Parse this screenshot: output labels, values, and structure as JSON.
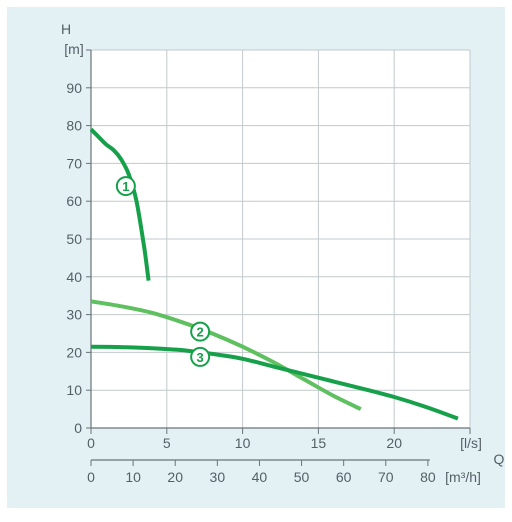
{
  "chart_data": {
    "type": "line",
    "title": "",
    "y_axis": {
      "label": "H",
      "unit": "[m]",
      "range": [
        0,
        100
      ],
      "ticks": [
        0,
        10,
        20,
        30,
        40,
        50,
        60,
        70,
        80,
        90
      ]
    },
    "x_axis": {
      "label": "Q",
      "unit": "[l/s]",
      "range": [
        0,
        25
      ],
      "ticks": [
        0,
        5,
        10,
        15,
        20
      ]
    },
    "x_axis_secondary": {
      "unit": "[m³/h]",
      "ticks": [
        0,
        10,
        20,
        30,
        40,
        50,
        60,
        70,
        80
      ]
    },
    "grid": true,
    "series": [
      {
        "name": "1",
        "color": "#16a04a",
        "x": [
          0,
          0.5,
          1.0,
          1.5,
          2.0,
          2.5,
          3.0,
          3.5,
          3.8
        ],
        "y": [
          79,
          77,
          75,
          73.5,
          71,
          67,
          60,
          48,
          39
        ]
      },
      {
        "name": "2",
        "color": "#5fc060",
        "x": [
          0,
          2,
          4,
          6,
          8,
          10,
          12,
          14,
          16,
          17.8
        ],
        "y": [
          33.5,
          32.2,
          30.5,
          28,
          25,
          21.5,
          17.5,
          13,
          8.5,
          5
        ]
      },
      {
        "name": "3",
        "color": "#16a04a",
        "x": [
          0,
          2,
          4,
          6,
          8,
          10,
          12,
          14,
          16,
          18,
          20,
          22,
          24.2
        ],
        "y": [
          21.5,
          21.4,
          21.1,
          20.6,
          19.6,
          18.3,
          16.3,
          14.3,
          12.3,
          10.3,
          8.2,
          5.7,
          2.5
        ]
      }
    ],
    "markers": [
      {
        "label": "1",
        "x": 2.3,
        "y": 64
      },
      {
        "label": "2",
        "x": 7.2,
        "y": 25.5
      },
      {
        "label": "3",
        "x": 7.2,
        "y": 18.8
      }
    ]
  }
}
